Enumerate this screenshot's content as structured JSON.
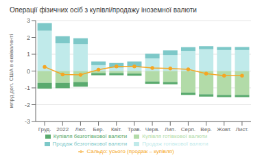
{
  "chart_data": {
    "type": "bar",
    "title": "Операції фізичних осіб з купівлі/продажу іноземної валюти",
    "y_label": "млрд дол. США в еквіваленті",
    "categories": [
      "Груд.",
      "2022",
      "Лют.",
      "Бер.",
      "Квіт.",
      "Трав.",
      "Черв.",
      "Лип.",
      "Серп.",
      "Вер.",
      "Жовт.",
      "Лист."
    ],
    "stacked": true,
    "grid": true,
    "legend": "bottom",
    "ylim": [
      -3.0,
      3.0
    ],
    "yticks": [
      -3,
      -2,
      -1,
      0,
      1,
      2,
      3
    ],
    "series": [
      {
        "name": "Продаж готівкової валюти",
        "type": "bar",
        "color": "#c0eaea",
        "values": [
          2.4,
          1.65,
          1.6,
          0.35,
          0.2,
          0.25,
          0.75,
          0.95,
          1.2,
          1.3,
          1.25,
          1.25
        ]
      },
      {
        "name": "Продаж безготівкової валюти",
        "type": "bar",
        "color": "#7dc8c8",
        "values": [
          0.45,
          0.42,
          0.35,
          0.22,
          0.28,
          0.32,
          0.28,
          0.28,
          0.22,
          0.18,
          0.18,
          0.18
        ]
      },
      {
        "name": "Купівля готівкової валюти",
        "type": "bar",
        "color": "#b2dba8",
        "values": [
          -0.7,
          -0.7,
          -0.65,
          -0.12,
          -0.12,
          -0.15,
          -0.62,
          -0.65,
          -1.28,
          -1.38,
          -1.42,
          -1.42
        ]
      },
      {
        "name": "Купівля безготівкової валюти",
        "type": "bar",
        "color": "#5aaa6e",
        "values": [
          -0.35,
          -0.32,
          -0.28,
          -0.13,
          -0.13,
          -0.13,
          -0.14,
          -0.14,
          -0.14,
          -0.14,
          -0.13,
          -0.13
        ]
      },
      {
        "name": "Сальдо: усього (продаж – купівля)",
        "type": "line",
        "color": "#f5a623",
        "marker": "o",
        "values": [
          0.25,
          -0.2,
          -0.22,
          0.08,
          0.28,
          0.28,
          0.18,
          0.15,
          0.1,
          -0.15,
          -0.28,
          -0.28
        ]
      }
    ]
  }
}
